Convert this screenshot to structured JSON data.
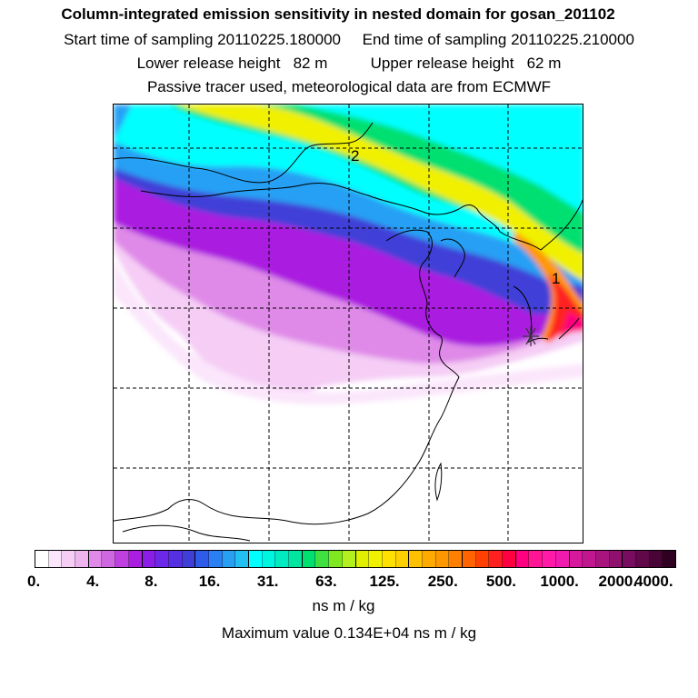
{
  "header": {
    "title": "Column-integrated emission sensitivity in nested domain for gosan_201102",
    "line2": "Start time of sampling 20110225.180000     End time of sampling 20110225.210000",
    "line3": "Lower release height   82 m          Upper release height   62 m",
    "line4": "Passive tracer used, meteorological data are from ECMWF"
  },
  "chart_data": {
    "type": "heatmap",
    "title": "Column-integrated emission sensitivity in nested domain for gosan_201102",
    "units": "ns m / kg",
    "maximum_value_text": "Maximum value  0.134E+04 ns m / kg",
    "maximum_value": 1340,
    "color_levels": [
      {
        "label": "0.",
        "value": 0
      },
      {
        "label": "4.",
        "value": 4
      },
      {
        "label": "8.",
        "value": 8
      },
      {
        "label": "16.",
        "value": 16
      },
      {
        "label": "31.",
        "value": 31
      },
      {
        "label": "63.",
        "value": 63
      },
      {
        "label": "125.",
        "value": 125
      },
      {
        "label": "250.",
        "value": 250
      },
      {
        "label": "500.",
        "value": 500
      },
      {
        "label": "1000.",
        "value": 1000
      },
      {
        "label": "2000.",
        "value": 2000
      },
      {
        "label": "4000.",
        "value": 4000
      }
    ],
    "colorbar_colors": [
      "#ffffff",
      "#fbe6fb",
      "#f5cdf5",
      "#eeb4ee",
      "#df8ae8",
      "#cf66e2",
      "#bf40e0",
      "#aa1ee0",
      "#8a1ee6",
      "#6c28e8",
      "#5530e2",
      "#3f3fd8",
      "#2e5bea",
      "#2a80f2",
      "#27a0f4",
      "#22c0f2",
      "#00ffff",
      "#00f5e0",
      "#00ecc0",
      "#00e5a0",
      "#00e070",
      "#40e040",
      "#80e820",
      "#b4f020",
      "#e0f000",
      "#f0f000",
      "#ffe000",
      "#ffd000",
      "#ffc000",
      "#ffaa00",
      "#ff9800",
      "#ff8000",
      "#ff6400",
      "#ff4000",
      "#ff2020",
      "#ff0040",
      "#ff0080",
      "#ff1493",
      "#ff1aa8",
      "#f01ab0",
      "#d8189c",
      "#c0168e",
      "#a8147e",
      "#90106e",
      "#780c5e",
      "#600848",
      "#480434",
      "#300022"
    ],
    "annotations": [
      "1",
      "2"
    ],
    "release_site": "gosan",
    "grid": true
  }
}
